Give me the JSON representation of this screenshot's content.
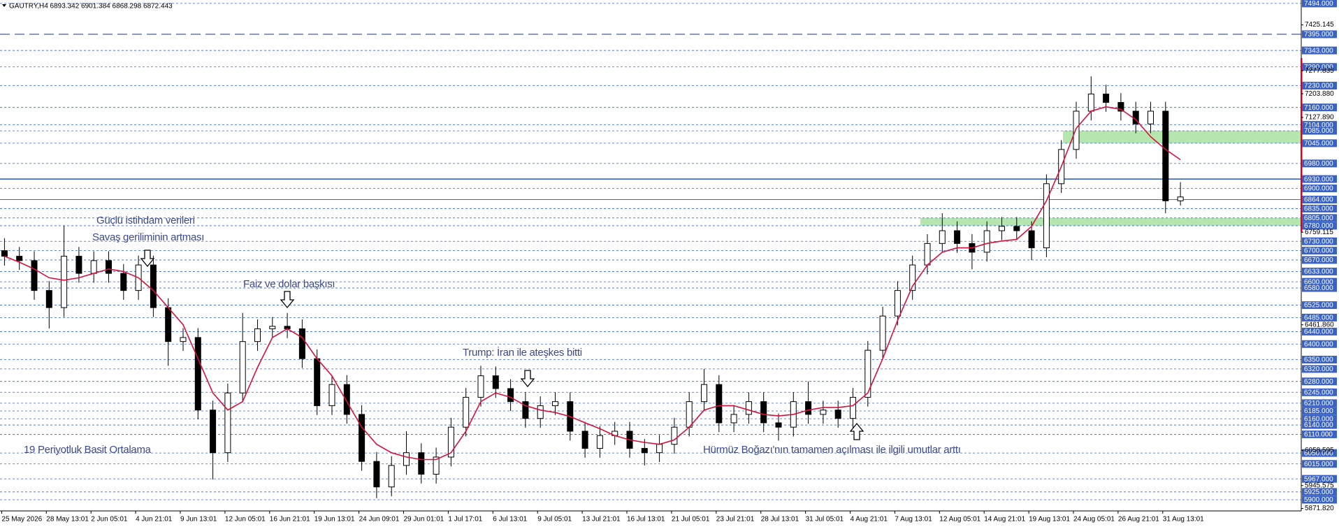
{
  "chart_data": {
    "type": "candlestick",
    "header": "GAUTRY,H4  6893.342 6901.384 6868.298 6872.443",
    "categories": [
      "25 May 2026",
      null,
      null,
      "28 May 13:01",
      null,
      null,
      "2 Jun 05:01",
      null,
      null,
      "4 Jun 21:01",
      null,
      null,
      "9 Jun 13:01",
      null,
      null,
      "12 Jun 05:01",
      null,
      null,
      "16 Jun 21:01",
      null,
      null,
      "19 Jun 13:01",
      null,
      null,
      "24 Jun 09:01",
      null,
      null,
      "29 Jun 01:01",
      null,
      null,
      "1 Jul 17:01",
      null,
      null,
      "6 Jul 13:01",
      null,
      null,
      "9 Jul 05:01",
      null,
      null,
      "13 Jul 21:01",
      null,
      null,
      "16 Jul 13:01",
      null,
      null,
      "21 Jul 05:01",
      null,
      null,
      "23 Jul 21:01",
      null,
      null,
      "28 Jul 13:01",
      null,
      null,
      "31 Jul 05:01",
      null,
      null,
      "4 Aug 21:01",
      null,
      null,
      "7 Aug 13:01",
      null,
      null,
      "12 Aug 05:01",
      null,
      null,
      "14 Aug 21:01",
      null,
      null,
      "19 Aug 13:01",
      null,
      null,
      "24 Aug 05:01",
      null,
      null,
      "26 Aug 21:01",
      null,
      null,
      "31 Aug 13:01",
      null
    ],
    "open": [
      6700,
      6682,
      6668,
      6572,
      6517,
      6682,
      6627,
      6668,
      6627,
      6572,
      6654,
      6517,
      6408,
      6421,
      6188,
      6051,
      6243,
      6408,
      6449,
      6457,
      6449,
      6353,
      6202,
      6270,
      6174,
      6023,
      5941,
      6010,
      6051,
      5982,
      6037,
      6133,
      6229,
      6298,
      6257,
      6215,
      6161,
      6202,
      6215,
      6120,
      6065,
      6106,
      6120,
      6065,
      6051,
      6078,
      6133,
      6215,
      6270,
      6147,
      6174,
      6215,
      6147,
      6133,
      6215,
      6174,
      6188,
      6161,
      6229,
      6380,
      6490,
      6572,
      6654,
      6723,
      6764,
      6723,
      6695,
      6764,
      6778,
      6764,
      6709,
      6915,
      7025,
      7148,
      7203,
      7176,
      7148,
      7107,
      7148,
      6860
    ],
    "high": [
      6740,
      6712,
      6698,
      6602,
      6780,
      6712,
      6698,
      6698,
      6657,
      6684,
      6684,
      6547,
      6451,
      6451,
      6218,
      6273,
      6500,
      6479,
      6487,
      6500,
      6479,
      6383,
      6300,
      6300,
      6204,
      6053,
      6040,
      6120,
      6081,
      6067,
      6163,
      6259,
      6330,
      6328,
      6287,
      6245,
      6232,
      6245,
      6245,
      6150,
      6136,
      6150,
      6150,
      6095,
      6108,
      6163,
      6245,
      6320,
      6300,
      6204,
      6245,
      6245,
      6177,
      6245,
      6280,
      6218,
      6218,
      6259,
      6410,
      6520,
      6602,
      6684,
      6753,
      6820,
      6794,
      6753,
      6794,
      6808,
      6808,
      6794,
      6945,
      7055,
      7178,
      7260,
      7233,
      7206,
      7178,
      7178,
      7178,
      6920
    ],
    "low": [
      6652,
      6638,
      6542,
      6450,
      6487,
      6597,
      6597,
      6597,
      6542,
      6542,
      6487,
      6330,
      6378,
      6158,
      5965,
      6021,
      6213,
      6378,
      6419,
      6419,
      6323,
      6172,
      6172,
      6144,
      5993,
      5905,
      5911,
      5980,
      5952,
      5952,
      6007,
      6103,
      6199,
      6227,
      6185,
      6131,
      6131,
      6172,
      6090,
      6035,
      6035,
      6076,
      6035,
      6010,
      6021,
      6048,
      6103,
      6185,
      6117,
      6117,
      6144,
      6117,
      6090,
      6103,
      6144,
      6144,
      6131,
      6131,
      6199,
      6350,
      6460,
      6542,
      6624,
      6693,
      6693,
      6640,
      6665,
      6734,
      6734,
      6670,
      6679,
      6885,
      6995,
      7118,
      7146,
      7118,
      7077,
      7077,
      6820,
      6845
    ],
    "close": [
      6682,
      6668,
      6572,
      6517,
      6682,
      6627,
      6668,
      6627,
      6572,
      6654,
      6517,
      6408,
      6421,
      6188,
      6051,
      6243,
      6408,
      6449,
      6457,
      6449,
      6353,
      6202,
      6270,
      6174,
      6023,
      5941,
      6010,
      6051,
      5982,
      6037,
      6133,
      6229,
      6298,
      6257,
      6215,
      6161,
      6202,
      6215,
      6120,
      6065,
      6106,
      6120,
      6065,
      6051,
      6078,
      6133,
      6215,
      6270,
      6147,
      6174,
      6215,
      6147,
      6133,
      6215,
      6174,
      6188,
      6161,
      6229,
      6380,
      6490,
      6572,
      6654,
      6723,
      6764,
      6723,
      6695,
      6764,
      6778,
      6764,
      6709,
      6915,
      7025,
      7148,
      7203,
      7176,
      7148,
      7107,
      7148,
      6860,
      6872.443
    ],
    "up_color": "#ffffff",
    "down_color": "#000000",
    "moving_average": {
      "color": "#d8103c",
      "values": [
        6682,
        6663,
        6641,
        6613,
        6605,
        6613,
        6627,
        6641,
        6633,
        6613,
        6572,
        6517,
        6462,
        6353,
        6243,
        6188,
        6215,
        6325,
        6421,
        6449,
        6421,
        6353,
        6298,
        6215,
        6133,
        6078,
        6051,
        6037,
        6029,
        6029,
        6051,
        6120,
        6215,
        6243,
        6229,
        6202,
        6188,
        6180,
        6167,
        6147,
        6128,
        6106,
        6092,
        6084,
        6078,
        6092,
        6133,
        6188,
        6202,
        6202,
        6188,
        6174,
        6169,
        6174,
        6188,
        6196,
        6196,
        6202,
        6243,
        6353,
        6476,
        6586,
        6654,
        6695,
        6709,
        6709,
        6723,
        6731,
        6736,
        6778,
        6860,
        6970,
        7093,
        7148,
        7162,
        7154,
        7121,
        7066,
        7025,
        6992
      ]
    },
    "ylim": [
      5864,
      7505
    ],
    "yticks": [
      7425.145,
      7277.835,
      {
        "value": 7203.88,
        "label": "7203.880"
      },
      {
        "value": 7127.89,
        "label": "7127.890"
      },
      6759.115,
      {
        "value": 6461.86,
        "label": "6461.860"
      },
      6058.595,
      5945.575,
      {
        "value": 5871.82,
        "label": "5871.820"
      }
    ],
    "level_color": "#3a62c4",
    "levels": [
      {
        "value": 7494,
        "label": "7494.000"
      },
      {
        "value": 7395,
        "label": "7395.000",
        "style": "long-dash"
      },
      {
        "value": 7343,
        "label": "7343.000"
      },
      {
        "value": 7290,
        "label": "7290.000"
      },
      {
        "value": 7230,
        "label": "7230.000"
      },
      {
        "value": 7160,
        "label": "7160.000"
      },
      {
        "value": 7104,
        "label": "7104.000"
      },
      {
        "value": 7085,
        "label": "7085.000"
      },
      {
        "value": 7045,
        "label": "7045.000"
      },
      {
        "value": 6980,
        "label": "6980.000"
      },
      {
        "value": 6930,
        "label": "6930.000",
        "style": "solid"
      },
      {
        "value": 6900,
        "label": "6900.000"
      },
      {
        "value": 6864,
        "label": "6864.000",
        "style": "solid-gray"
      },
      {
        "value": 6835,
        "label": "6835.000"
      },
      {
        "value": 6805,
        "label": "6805.000"
      },
      {
        "value": 6780,
        "label": "6780.000"
      },
      {
        "value": 6730,
        "label": "6730.000"
      },
      {
        "value": 6700,
        "label": "6700.000"
      },
      {
        "value": 6670,
        "label": "6670.000"
      },
      {
        "value": 6633,
        "label": "6633.000"
      },
      {
        "value": 6600,
        "label": "6600.000"
      },
      {
        "value": 6580,
        "label": "6580.000"
      },
      {
        "value": 6525,
        "label": "6525.000"
      },
      {
        "value": 6485,
        "label": "6485.000"
      },
      {
        "value": 6440,
        "label": "6440.000"
      },
      {
        "value": 6400,
        "label": "6400.000"
      },
      {
        "value": 6350,
        "label": "6350.000"
      },
      {
        "value": 6320,
        "label": "6320.000"
      },
      {
        "value": 6280,
        "label": "6280.000"
      },
      {
        "value": 6245,
        "label": "6245.000"
      },
      {
        "value": 6210,
        "label": "6210.000"
      },
      {
        "value": 6185,
        "label": "6185.000"
      },
      {
        "value": 6160,
        "label": "6160.000"
      },
      {
        "value": 6140,
        "label": "6140.000"
      },
      {
        "value": 6110,
        "label": "6110.000"
      },
      {
        "value": 6050,
        "label": "6050.000"
      },
      {
        "value": 6015,
        "label": "6015.000"
      },
      {
        "value": 5967,
        "label": "5967.000"
      },
      {
        "value": 5925,
        "label": "5925.000"
      },
      {
        "value": 5900,
        "label": "5900.000"
      }
    ],
    "zones": [
      {
        "from": 7045,
        "to": 7085,
        "color": "#b5e6ae"
      },
      {
        "from": 6780,
        "to": 6805,
        "color": "#b5e6ae"
      }
    ],
    "annotations": [
      "Güçlü istihdam verileri",
      "Savaş geriliminin artması",
      "Faiz ve dolar başkısı",
      "Trump: İran ile ateşkes bitti",
      "19 Periyotluk Basit Ortalama",
      "Hürmüz Boğazı'nın tamamen açılması ile ilgili umutlar arttı"
    ]
  }
}
